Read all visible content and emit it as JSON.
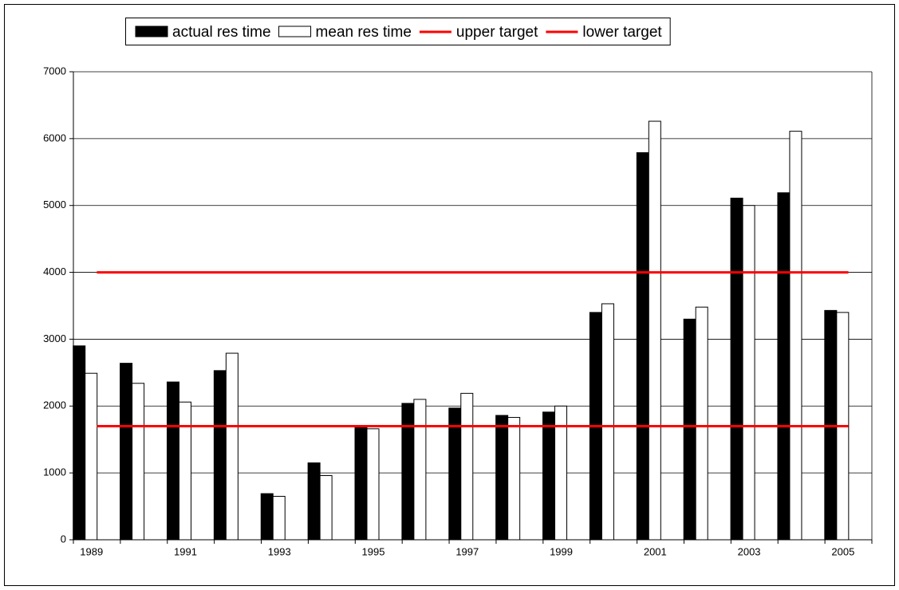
{
  "chart_data": {
    "type": "bar",
    "categories": [
      "1989",
      null,
      "1991",
      null,
      "1993",
      null,
      "1995",
      null,
      "1997",
      null,
      "1999",
      null,
      "2001",
      null,
      "2003",
      null,
      "2005"
    ],
    "series": [
      {
        "name": "actual res time",
        "type": "bar",
        "color": "#000000",
        "values": [
          2900,
          2640,
          2360,
          2530,
          690,
          1150,
          1680,
          2040,
          1970,
          1860,
          1910,
          3400,
          5790,
          3300,
          5110,
          5190,
          3430
        ]
      },
      {
        "name": "mean res time",
        "type": "bar",
        "color": "#ffffff",
        "values": [
          2490,
          2340,
          2060,
          2790,
          650,
          960,
          1660,
          2100,
          2190,
          1830,
          2000,
          3530,
          6260,
          3480,
          5000,
          6110,
          3400
        ]
      },
      {
        "name": "upper target",
        "type": "line",
        "color": "#ff0000",
        "values": [
          4000,
          4000,
          4000,
          4000,
          4000,
          4000,
          4000,
          4000,
          4000,
          4000,
          4000,
          4000,
          4000,
          4000,
          4000,
          4000,
          4000
        ]
      },
      {
        "name": "lower target",
        "type": "line",
        "color": "#ff0000",
        "values": [
          1700,
          1700,
          1700,
          1700,
          1700,
          1700,
          1700,
          1700,
          1700,
          1700,
          1700,
          1700,
          1700,
          1700,
          1700,
          1700,
          1700
        ]
      }
    ],
    "ylim": [
      0,
      7000
    ],
    "yticks": [
      0,
      1000,
      2000,
      3000,
      4000,
      5000,
      6000,
      7000
    ],
    "grid": true,
    "legend": "top"
  }
}
